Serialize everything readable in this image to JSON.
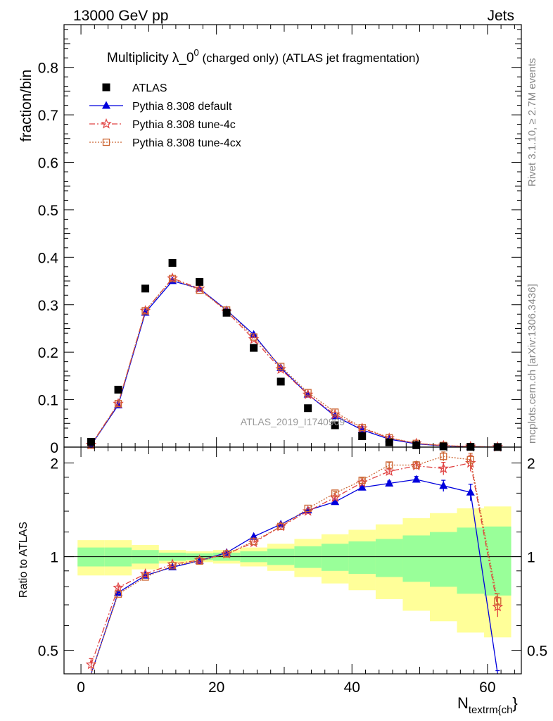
{
  "header": {
    "left": "13000 GeV pp",
    "right": "Jets"
  },
  "side": {
    "rivet": "Rivet 3.1.10, ≥ 2.7M events",
    "mcplots": "mcplots.cern.ch [arXiv:1306.3436]"
  },
  "chart_data": {
    "type": "scatter",
    "title_main": "Multiplicity λ_0",
    "title_sup": "0",
    "title_rest": " (charged only) (ATLAS jet fragmentation)",
    "watermark": "ATLAS_2019_I1740909",
    "xlabel_main": "N",
    "xlabel_sub": "textrm{ch",
    "xlabel_tail": "}",
    "ylabel_top": "fraction/bin",
    "ylabel_bottom": "Ratio to ATLAS",
    "xlim": [
      -2.5,
      65
    ],
    "ylim_top": [
      0,
      0.89
    ],
    "ylim_bottom": [
      0.42,
      2.25
    ],
    "xticks": [
      "0",
      "20",
      "40",
      "60"
    ],
    "yticks_top": [
      "0",
      "0.1",
      "0.2",
      "0.3",
      "0.4",
      "0.5",
      "0.6",
      "0.7",
      "0.8"
    ],
    "yticks_bottom": [
      "0.5",
      "1",
      "2"
    ],
    "x": [
      1.5,
      5.5,
      9.5,
      13.5,
      17.5,
      21.5,
      25.5,
      29.5,
      33.5,
      37.5,
      41.5,
      45.5,
      49.5,
      53.5,
      57.5,
      61.5
    ],
    "data": {
      "name": "ATLAS",
      "color": "#000000",
      "values": [
        0.011,
        0.121,
        0.334,
        0.388,
        0.348,
        0.283,
        0.209,
        0.138,
        0.082,
        0.046,
        0.023,
        0.01,
        0.004,
        0.0016,
        0.0006,
        0.0002
      ],
      "band_inner": [
        0.07,
        0.07,
        0.05,
        0.03,
        0.025,
        0.03,
        0.04,
        0.06,
        0.08,
        0.1,
        0.12,
        0.14,
        0.17,
        0.2,
        0.24,
        0.25
      ],
      "band_outer": [
        0.13,
        0.13,
        0.09,
        0.05,
        0.04,
        0.05,
        0.07,
        0.1,
        0.14,
        0.18,
        0.22,
        0.27,
        0.33,
        0.38,
        0.43,
        0.45
      ]
    },
    "series": [
      {
        "name": "Pythia 8.308 default",
        "color": "#0000dd",
        "values": [
          0.0038,
          0.0885,
          0.2835,
          0.3502,
          0.3341,
          0.2887,
          0.237,
          0.1671,
          0.111,
          0.0653,
          0.0363,
          0.0168,
          0.0068,
          0.0026,
          0.0009,
          0.0001
        ],
        "ratio": [
          0.35,
          0.766,
          0.87,
          0.925,
          0.97,
          1.03,
          1.16,
          1.27,
          1.41,
          1.5,
          1.67,
          1.72,
          1.77,
          1.69,
          1.61,
          0.4
        ],
        "ratio_err": [
          0,
          0,
          0,
          0,
          0,
          0,
          0,
          0,
          0,
          0.02,
          0.02,
          0.03,
          0.04,
          0.07,
          0.1,
          0.03
        ]
      },
      {
        "name": "Pythia 8.308 tune-4c",
        "color": "#e04040",
        "values": [
          0.005,
          0.0914,
          0.2872,
          0.3557,
          0.3341,
          0.2857,
          0.2272,
          0.1642,
          0.1107,
          0.0689,
          0.0398,
          0.0188,
          0.0078,
          0.0031,
          0.0012,
          0.0001
        ],
        "ratio": [
          0.45,
          0.795,
          0.88,
          0.945,
          0.975,
          1.02,
          1.11,
          1.25,
          1.4,
          1.55,
          1.73,
          1.88,
          1.96,
          1.92,
          2.0,
          0.69
        ],
        "ratio_err": [
          0.02,
          0.01,
          0,
          0,
          0,
          0,
          0,
          0,
          0,
          0.02,
          0.03,
          0.04,
          0.05,
          0.09,
          0.12,
          0.05
        ]
      },
      {
        "name": "Pythia 8.308 tune-4cx",
        "color": "#cc6633",
        "values": [
          0.004,
          0.0917,
          0.2872,
          0.355,
          0.3306,
          0.2887,
          0.232,
          0.1698,
          0.1148,
          0.0736,
          0.0412,
          0.0197,
          0.0078,
          0.0034,
          0.0012,
          0.0001
        ],
        "ratio": [
          0.36,
          0.758,
          0.86,
          0.935,
          0.968,
          1.02,
          1.12,
          1.25,
          1.43,
          1.6,
          1.76,
          1.97,
          1.97,
          2.1,
          2.05,
          0.72
        ],
        "ratio_err": [
          0,
          0,
          0,
          0,
          0,
          0,
          0,
          0,
          0,
          0.02,
          0.03,
          0.04,
          0.05,
          0.07,
          0.1,
          0.04
        ]
      }
    ],
    "legend_position": "top-left"
  }
}
